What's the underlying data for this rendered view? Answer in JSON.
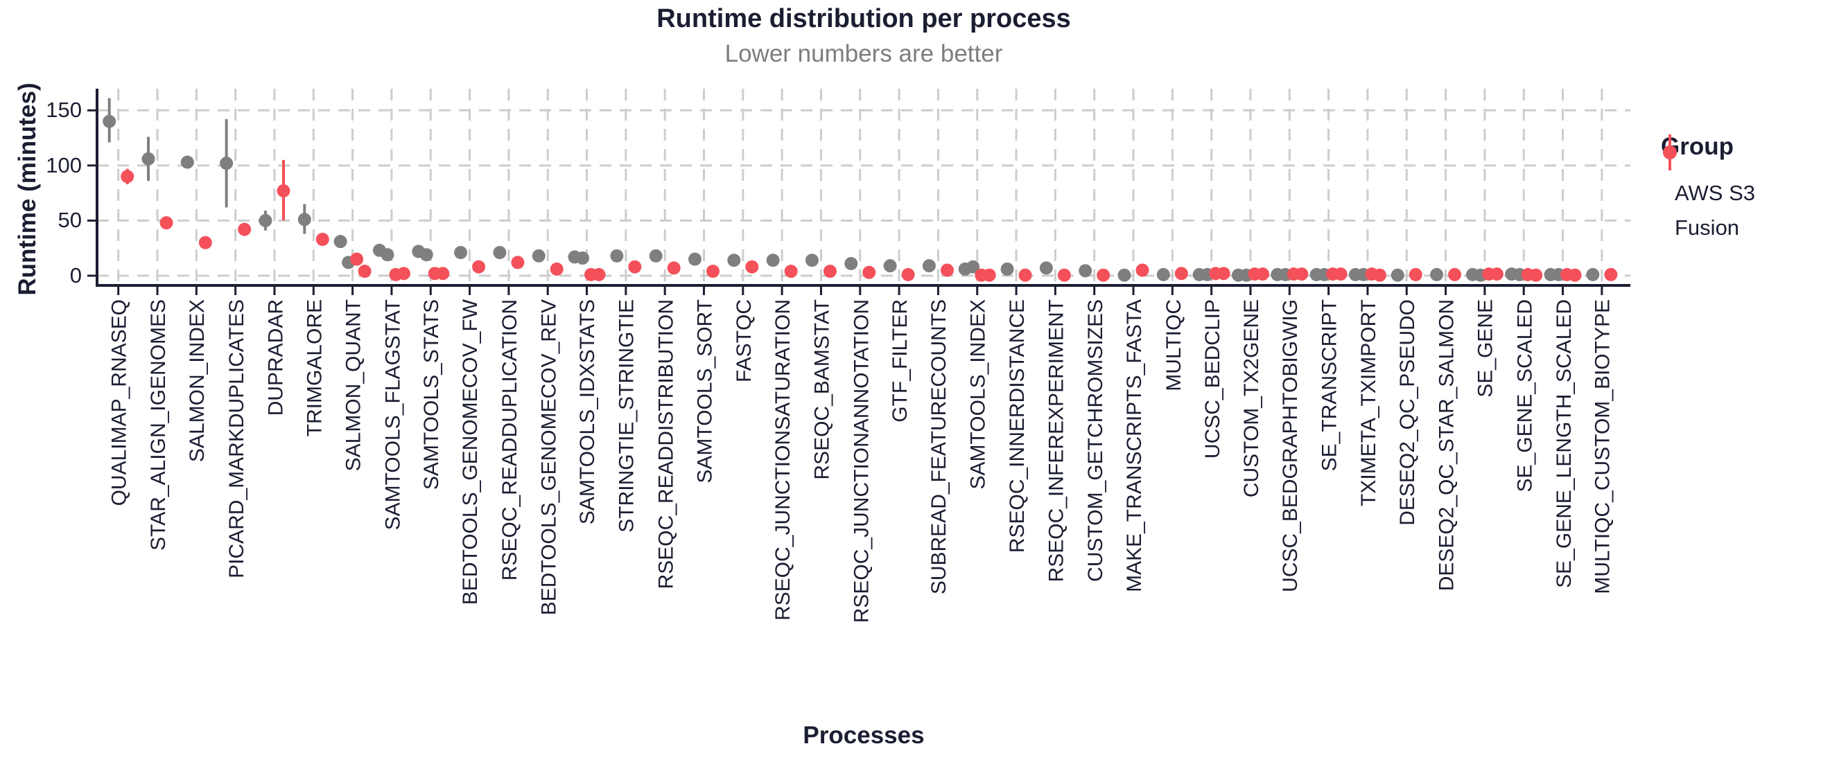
{
  "title": "Runtime distribution per process",
  "subtitle": "Lower numbers are better",
  "y_axis": {
    "label": "Runtime (minutes)",
    "ticks": [
      0,
      50,
      100,
      150
    ]
  },
  "x_axis": {
    "label": "Processes"
  },
  "legend": {
    "title": "Group",
    "items": [
      {
        "label": "AWS S3",
        "color": "#7f7f7f"
      },
      {
        "label": "Fusion",
        "color": "#f4505a"
      }
    ]
  },
  "colors": {
    "aws_s3": "#7f7f7f",
    "fusion": "#f4505a",
    "grid": "#cdcdcd",
    "text": "#1b1e32",
    "subtitle": "#7d7d7d"
  },
  "chart_data": {
    "type": "pointrange-dot",
    "title": "Runtime distribution per process",
    "subtitle": "Lower numbers are better",
    "xlabel": "Processes",
    "ylabel": "Runtime (minutes)",
    "ylim": [
      0,
      170
    ],
    "yticks": [
      0,
      50,
      100,
      150
    ],
    "grid": true,
    "legend_position": "right",
    "groups": [
      "AWS S3",
      "Fusion"
    ],
    "units": "minutes",
    "processes": [
      {
        "name": "QUALIMAP_RNASEQ",
        "aws_s3": [
          {
            "value": 140,
            "lo": 121,
            "hi": 161
          }
        ],
        "fusion": [
          {
            "value": 90,
            "lo": 83,
            "hi": 97
          }
        ]
      },
      {
        "name": "STAR_ALIGN_IGENOMES",
        "aws_s3": [
          {
            "value": 106,
            "lo": 86,
            "hi": 126
          }
        ],
        "fusion": [
          {
            "value": 48
          }
        ]
      },
      {
        "name": "SALMON_INDEX",
        "aws_s3": [
          {
            "value": 103
          }
        ],
        "fusion": [
          {
            "value": 30
          }
        ]
      },
      {
        "name": "PICARD_MARKDUPLICATES",
        "aws_s3": [
          {
            "value": 102,
            "lo": 62,
            "hi": 142
          }
        ],
        "fusion": [
          {
            "value": 42
          }
        ]
      },
      {
        "name": "DUPRADAR",
        "aws_s3": [
          {
            "value": 50,
            "lo": 41,
            "hi": 59
          }
        ],
        "fusion": [
          {
            "value": 77,
            "lo": 50,
            "hi": 105
          }
        ]
      },
      {
        "name": "TRIMGALORE",
        "aws_s3": [
          {
            "value": 51,
            "lo": 38,
            "hi": 65
          }
        ],
        "fusion": [
          {
            "value": 33
          }
        ]
      },
      {
        "name": "SALMON_QUANT",
        "aws_s3": [
          {
            "value": 31
          },
          {
            "value": 12
          }
        ],
        "fusion": [
          {
            "value": 15
          },
          {
            "value": 4
          }
        ]
      },
      {
        "name": "SAMTOOLS_FLAGSTAT",
        "aws_s3": [
          {
            "value": 23,
            "lo": 20,
            "hi": 27
          },
          {
            "value": 19
          }
        ],
        "fusion": [
          {
            "value": 1
          },
          {
            "value": 2
          }
        ]
      },
      {
        "name": "SAMTOOLS_STATS",
        "aws_s3": [
          {
            "value": 22,
            "lo": 19,
            "hi": 25
          },
          {
            "value": 19
          }
        ],
        "fusion": [
          {
            "value": 2
          },
          {
            "value": 2
          }
        ]
      },
      {
        "name": "BEDTOOLS_GENOMECOV_FW",
        "aws_s3": [
          {
            "value": 21
          }
        ],
        "fusion": [
          {
            "value": 8
          }
        ]
      },
      {
        "name": "RSEQC_READDUPLICATION",
        "aws_s3": [
          {
            "value": 21
          }
        ],
        "fusion": [
          {
            "value": 12
          }
        ]
      },
      {
        "name": "BEDTOOLS_GENOMECOV_REV",
        "aws_s3": [
          {
            "value": 18
          }
        ],
        "fusion": [
          {
            "value": 6
          }
        ]
      },
      {
        "name": "SAMTOOLS_IDXSTATS",
        "aws_s3": [
          {
            "value": 17
          },
          {
            "value": 16
          }
        ],
        "fusion": [
          {
            "value": 1
          },
          {
            "value": 1
          }
        ]
      },
      {
        "name": "STRINGTIE_STRINGTIE",
        "aws_s3": [
          {
            "value": 18,
            "lo": 14,
            "hi": 22
          }
        ],
        "fusion": [
          {
            "value": 8
          }
        ]
      },
      {
        "name": "RSEQC_READDISTRIBUTION",
        "aws_s3": [
          {
            "value": 18
          }
        ],
        "fusion": [
          {
            "value": 7
          }
        ]
      },
      {
        "name": "SAMTOOLS_SORT",
        "aws_s3": [
          {
            "value": 15,
            "lo": 11,
            "hi": 19
          }
        ],
        "fusion": [
          {
            "value": 4
          }
        ]
      },
      {
        "name": "FASTQC",
        "aws_s3": [
          {
            "value": 14
          }
        ],
        "fusion": [
          {
            "value": 8
          }
        ]
      },
      {
        "name": "RSEQC_JUNCTIONSATURATION",
        "aws_s3": [
          {
            "value": 14
          }
        ],
        "fusion": [
          {
            "value": 4
          }
        ]
      },
      {
        "name": "RSEQC_BAMSTAT",
        "aws_s3": [
          {
            "value": 14
          }
        ],
        "fusion": [
          {
            "value": 4
          }
        ]
      },
      {
        "name": "RSEQC_JUNCTIONANNOTATION",
        "aws_s3": [
          {
            "value": 11
          }
        ],
        "fusion": [
          {
            "value": 3
          }
        ]
      },
      {
        "name": "GTF_FILTER",
        "aws_s3": [
          {
            "value": 9
          }
        ],
        "fusion": [
          {
            "value": 1
          }
        ]
      },
      {
        "name": "SUBREAD_FEATURECOUNTS",
        "aws_s3": [
          {
            "value": 9
          }
        ],
        "fusion": [
          {
            "value": 5
          }
        ]
      },
      {
        "name": "SAMTOOLS_INDEX",
        "aws_s3": [
          {
            "value": 6
          },
          {
            "value": 8
          }
        ],
        "fusion": [
          {
            "value": 0.5
          },
          {
            "value": 0.5
          }
        ]
      },
      {
        "name": "RSEQC_INNERDISTANCE",
        "aws_s3": [
          {
            "value": 6
          }
        ],
        "fusion": [
          {
            "value": 0.5
          }
        ]
      },
      {
        "name": "RSEQC_INFEREXPERIMENT",
        "aws_s3": [
          {
            "value": 7
          }
        ],
        "fusion": [
          {
            "value": 0.5
          }
        ]
      },
      {
        "name": "CUSTOM_GETCHROMSIZES",
        "aws_s3": [
          {
            "value": 4.5
          }
        ],
        "fusion": [
          {
            "value": 0.5
          }
        ]
      },
      {
        "name": "MAKE_TRANSCRIPTS_FASTA",
        "aws_s3": [
          {
            "value": 0.5
          }
        ],
        "fusion": [
          {
            "value": 5
          }
        ]
      },
      {
        "name": "MULTIQC",
        "aws_s3": [
          {
            "value": 1
          }
        ],
        "fusion": [
          {
            "value": 2
          }
        ]
      },
      {
        "name": "UCSC_BEDCLIP",
        "aws_s3": [
          {
            "value": 1
          },
          {
            "value": 1
          }
        ],
        "fusion": [
          {
            "value": 2
          },
          {
            "value": 2
          }
        ]
      },
      {
        "name": "CUSTOM_TX2GENE",
        "aws_s3": [
          {
            "value": 0.5
          },
          {
            "value": 0.5
          }
        ],
        "fusion": [
          {
            "value": 1.5
          },
          {
            "value": 1.5
          }
        ]
      },
      {
        "name": "UCSC_BEDGRAPHTOBIGWIG",
        "aws_s3": [
          {
            "value": 1
          },
          {
            "value": 1
          }
        ],
        "fusion": [
          {
            "value": 1.5
          },
          {
            "value": 1.5
          }
        ]
      },
      {
        "name": "SE_TRANSCRIPT",
        "aws_s3": [
          {
            "value": 1
          },
          {
            "value": 1
          }
        ],
        "fusion": [
          {
            "value": 1.5
          },
          {
            "value": 1.5
          }
        ]
      },
      {
        "name": "TXIMETA_TXIMPORT",
        "aws_s3": [
          {
            "value": 1
          },
          {
            "value": 1
          }
        ],
        "fusion": [
          {
            "value": 1.5
          },
          {
            "value": 0.5
          }
        ]
      },
      {
        "name": "DESEQ2_QC_PSEUDO",
        "aws_s3": [
          {
            "value": 0.5
          }
        ],
        "fusion": [
          {
            "value": 1
          }
        ]
      },
      {
        "name": "DESEQ2_QC_STAR_SALMON",
        "aws_s3": [
          {
            "value": 1
          }
        ],
        "fusion": [
          {
            "value": 1
          }
        ]
      },
      {
        "name": "SE_GENE",
        "aws_s3": [
          {
            "value": 1
          },
          {
            "value": 0.5
          }
        ],
        "fusion": [
          {
            "value": 1.5
          },
          {
            "value": 1.5
          }
        ]
      },
      {
        "name": "SE_GENE_SCALED",
        "aws_s3": [
          {
            "value": 1.5
          },
          {
            "value": 1
          }
        ],
        "fusion": [
          {
            "value": 1
          },
          {
            "value": 0.5
          }
        ]
      },
      {
        "name": "SE_GENE_LENGTH_SCALED",
        "aws_s3": [
          {
            "value": 1
          },
          {
            "value": 1
          }
        ],
        "fusion": [
          {
            "value": 1
          },
          {
            "value": 0.5
          }
        ]
      },
      {
        "name": "MULTIQC_CUSTOM_BIOTYPE",
        "aws_s3": [
          {
            "value": 1
          }
        ],
        "fusion": [
          {
            "value": 1
          }
        ]
      }
    ]
  }
}
